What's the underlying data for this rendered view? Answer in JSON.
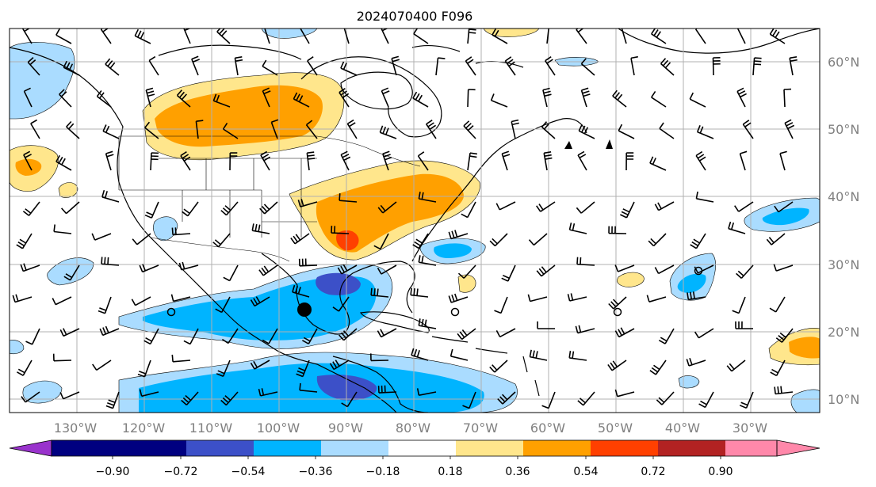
{
  "title": "2024070400 F096",
  "map": {
    "longitude_labels": [
      "130°W",
      "120°W",
      "110°W",
      "100°W",
      "90°W",
      "80°W",
      "70°W",
      "60°W",
      "50°W",
      "40°W",
      "30°W"
    ],
    "latitude_labels": [
      "60°N",
      "50°N",
      "40°N",
      "30°N",
      "20°N",
      "10°N"
    ],
    "gridlines": true
  },
  "colorbar": {
    "tick_labels": [
      "−0.90",
      "−0.72",
      "−0.54",
      "−0.36",
      "−0.18",
      "0.18",
      "0.36",
      "0.54",
      "0.72",
      "0.90"
    ],
    "colors": [
      "#9933cc",
      "#000080",
      "#3c50c8",
      "#00b4ff",
      "#aadcff",
      "#ffffff",
      "#ffe68c",
      "#ffa000",
      "#ff4000",
      "#b22222",
      "#ff88aa"
    ],
    "extend": "both"
  },
  "markers": {
    "tropical_storm_positions": "circles",
    "tropical_storm_color": "#000000"
  }
}
